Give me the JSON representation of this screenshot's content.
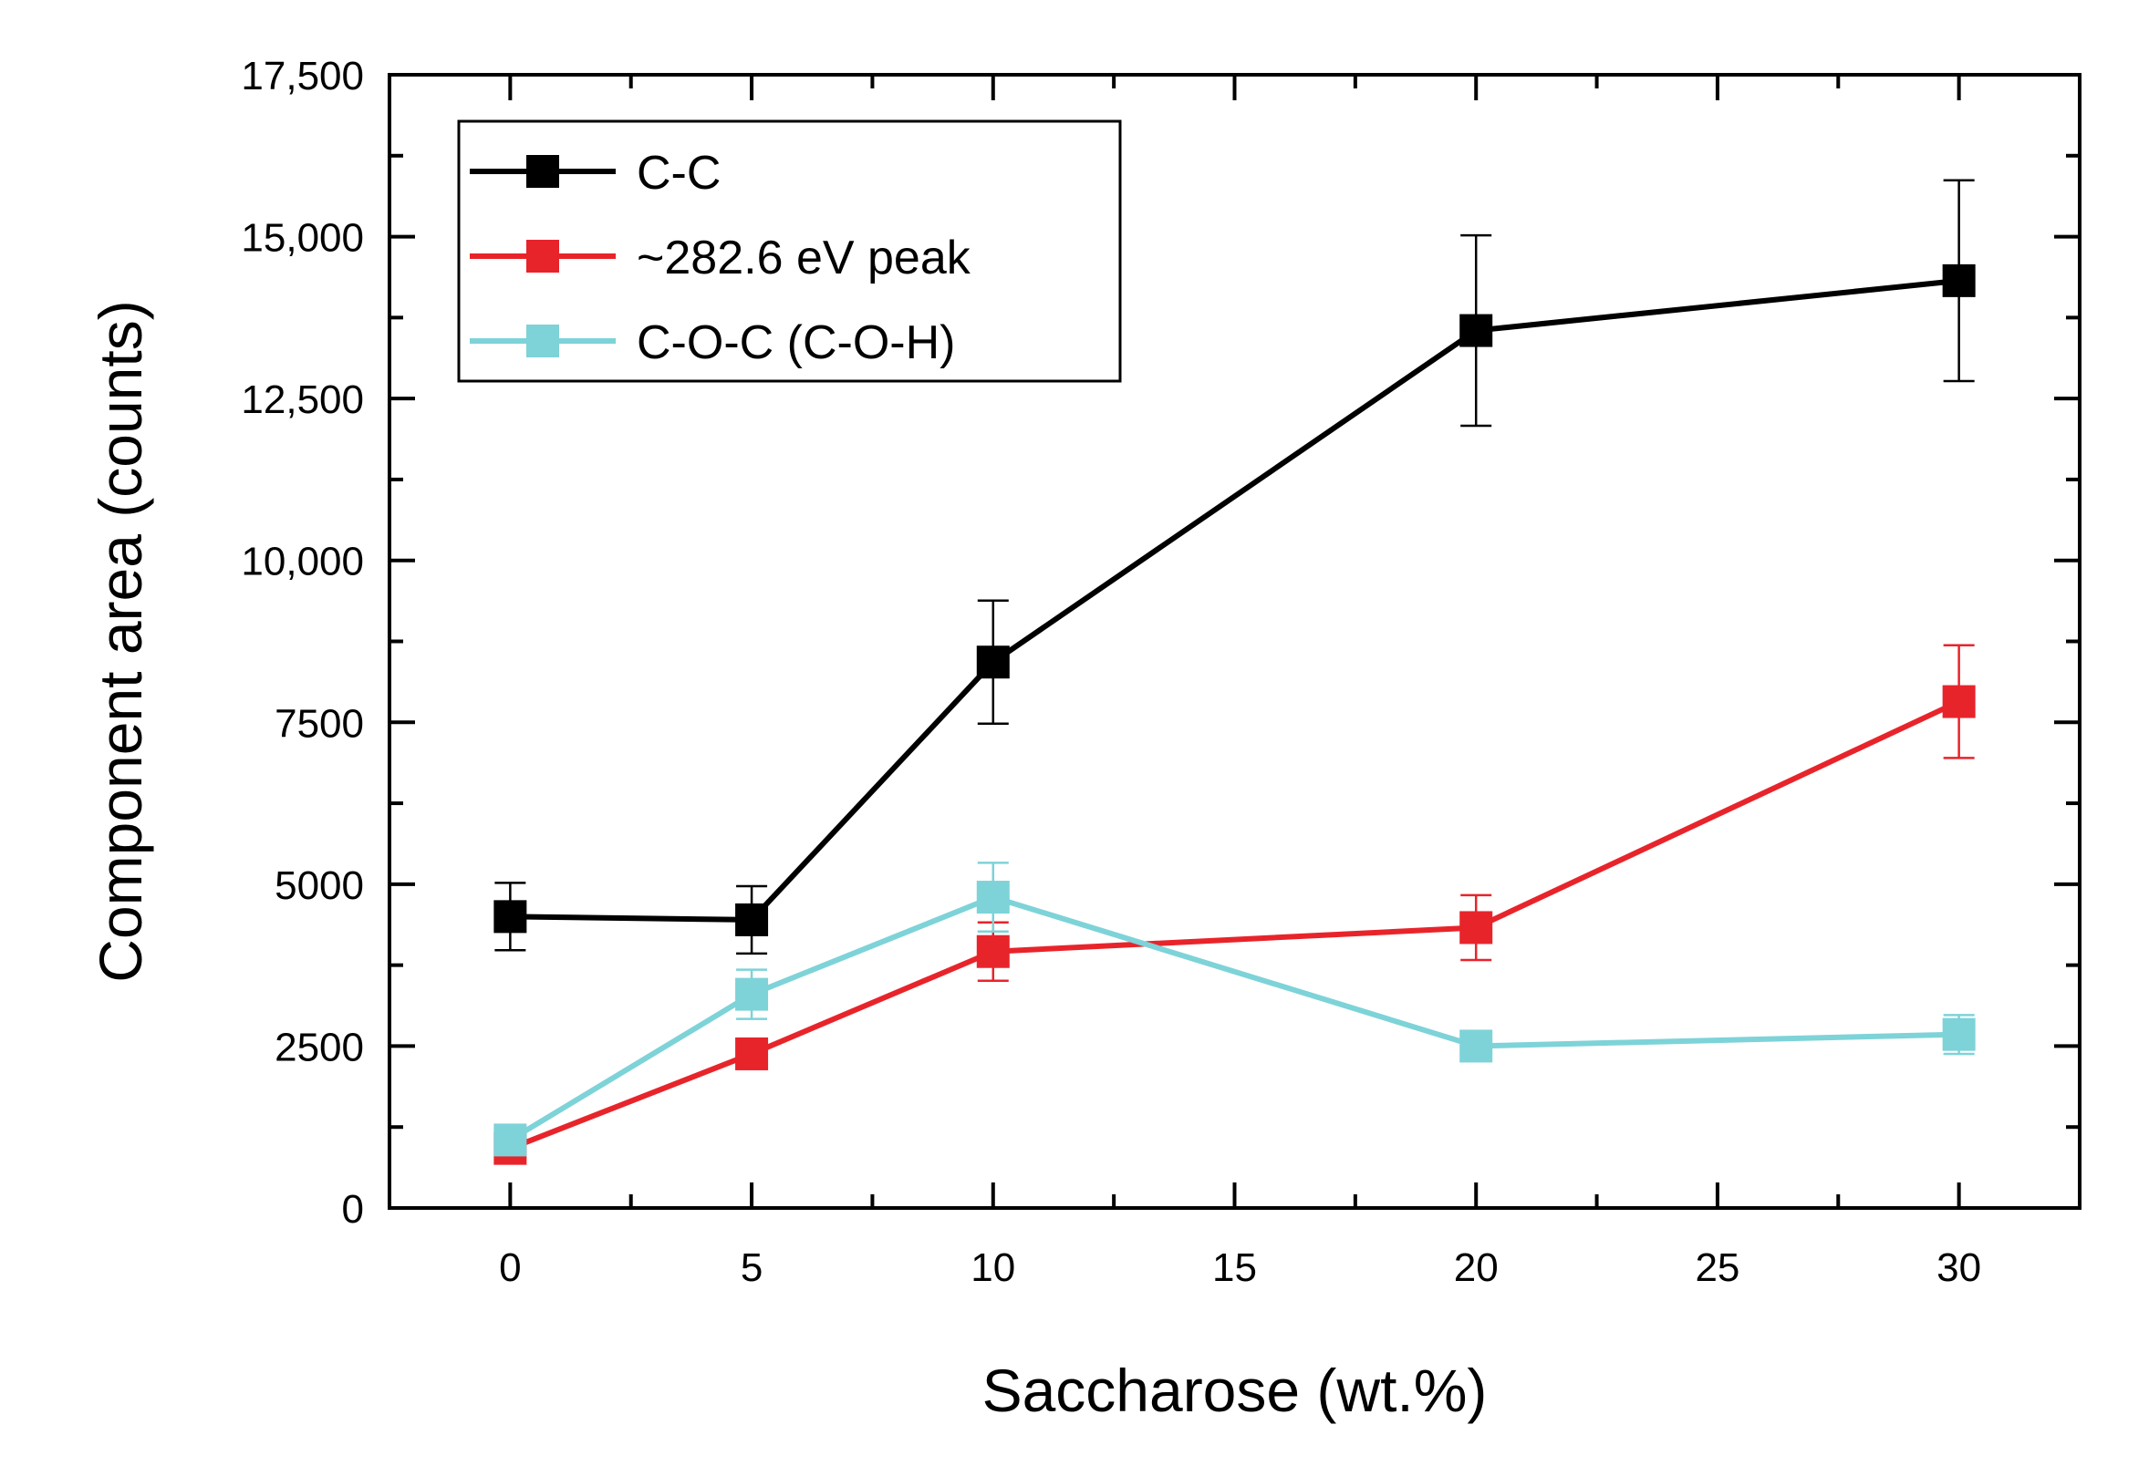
{
  "chart_data": {
    "type": "line",
    "title": "",
    "xlabel": "Saccharose (wt.%)",
    "ylabel": "Component area (counts)",
    "xlim": [
      -2.5,
      32.5
    ],
    "ylim": [
      0,
      17500
    ],
    "x_ticks": [
      0,
      5,
      10,
      15,
      20,
      25,
      30
    ],
    "x_tick_labels": [
      "0",
      "5",
      "10",
      "15",
      "20",
      "25",
      "30"
    ],
    "y_ticks": [
      0,
      2500,
      5000,
      7500,
      10000,
      12500,
      15000,
      17500
    ],
    "y_tick_labels": [
      "0",
      "2500",
      "5000",
      "7500",
      "10,000",
      "12,500",
      "15,000",
      "17,500"
    ],
    "x": [
      0,
      5,
      10,
      20,
      30
    ],
    "legend_position": "top-left",
    "series": [
      {
        "name": "C-C",
        "color": "#000000",
        "values": [
          4500,
          4450,
          8430,
          13550,
          14320
        ],
        "errors": [
          520,
          520,
          950,
          1470,
          1550
        ]
      },
      {
        "name": "~282.6 eV peak",
        "color": "#e8242b",
        "values": [
          920,
          2380,
          3960,
          4330,
          7820
        ],
        "errors": [
          150,
          150,
          450,
          500,
          870
        ]
      },
      {
        "name": "C-O-C (C-O-H)",
        "color": "#7dd3d8",
        "values": [
          1050,
          3300,
          4800,
          2500,
          2680
        ],
        "errors": [
          200,
          380,
          530,
          150,
          300
        ]
      }
    ]
  }
}
